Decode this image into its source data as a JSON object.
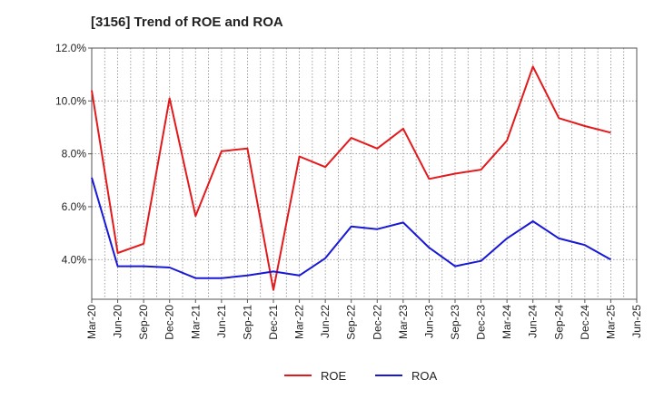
{
  "chart_data": {
    "type": "line",
    "title": "[3156]  Trend of ROE and ROA",
    "xlabel": "",
    "ylabel": "",
    "ylim": [
      2.5,
      12.0
    ],
    "yticks": [
      4.0,
      6.0,
      8.0,
      10.0,
      12.0
    ],
    "ytick_labels": [
      "4.0%",
      "6.0%",
      "8.0%",
      "10.0%",
      "12.0%"
    ],
    "grid": true,
    "legend": "bottom-center",
    "categories": [
      "Mar-20",
      "Jun-20",
      "Sep-20",
      "Dec-20",
      "Mar-21",
      "Jun-21",
      "Sep-21",
      "Dec-21",
      "Mar-22",
      "Jun-22",
      "Sep-22",
      "Dec-22",
      "Mar-23",
      "Jun-23",
      "Sep-23",
      "Dec-23",
      "Mar-24",
      "Jun-24",
      "Sep-24",
      "Dec-24",
      "Mar-25",
      "Jun-25"
    ],
    "series": [
      {
        "name": "ROE",
        "color": "#e31a1c",
        "values": [
          10.4,
          4.25,
          4.6,
          10.1,
          5.65,
          8.1,
          8.2,
          2.85,
          7.9,
          7.5,
          8.6,
          8.2,
          8.95,
          7.05,
          7.25,
          7.4,
          8.5,
          11.3,
          9.35,
          9.05,
          8.8,
          null
        ]
      },
      {
        "name": "ROA",
        "color": "#1818d6",
        "values": [
          7.1,
          3.75,
          3.75,
          3.7,
          3.3,
          3.3,
          3.4,
          3.55,
          3.4,
          4.05,
          5.25,
          5.15,
          5.4,
          4.45,
          3.75,
          3.95,
          4.8,
          5.45,
          4.8,
          4.55,
          4.0,
          null
        ]
      }
    ]
  }
}
